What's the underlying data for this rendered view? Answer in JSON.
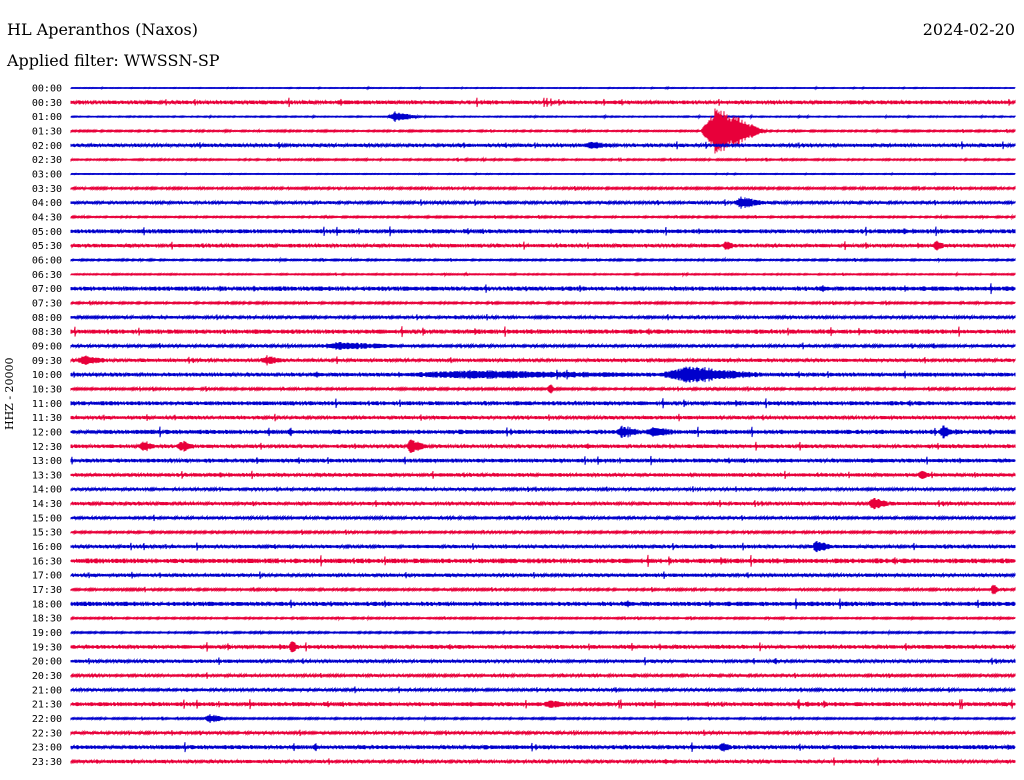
{
  "header": {
    "station": "HL Aperanthos (Naxos)",
    "date": "2024-02-20",
    "filter": "Applied filter: WWSSN-SP"
  },
  "chart_data": {
    "type": "line",
    "title": "HL Aperanthos (Naxos)",
    "subtitle": "Applied filter: WWSSN-SP",
    "ylabel": "HHZ - 20000",
    "xlabel": "",
    "colors": {
      "even_trace": "#0000cc",
      "odd_trace": "#e8003a"
    },
    "trace_labels": [
      "00:00",
      "00:30",
      "01:00",
      "01:30",
      "02:00",
      "02:30",
      "03:00",
      "03:30",
      "04:00",
      "04:30",
      "05:00",
      "05:30",
      "06:00",
      "06:30",
      "07:00",
      "07:30",
      "08:00",
      "08:30",
      "09:00",
      "09:30",
      "10:00",
      "10:30",
      "11:00",
      "11:30",
      "12:00",
      "12:30",
      "13:00",
      "13:30",
      "14:00",
      "14:30",
      "15:00",
      "15:30",
      "16:00",
      "16:30",
      "17:00",
      "17:30",
      "18:00",
      "18:30",
      "19:00",
      "19:30",
      "20:00",
      "20:30",
      "21:00",
      "21:30",
      "22:00",
      "22:30",
      "23:00",
      "23:30"
    ],
    "noise_level": [
      0.3,
      1.4,
      0.4,
      0.6,
      1.2,
      0.6,
      0.3,
      0.8,
      1.0,
      0.6,
      1.5,
      1.3,
      0.6,
      0.5,
      1.6,
      0.7,
      1.0,
      1.6,
      1.0,
      1.2,
      1.4,
      0.8,
      1.5,
      1.2,
      1.6,
      1.3,
      1.4,
      1.3,
      1.0,
      1.2,
      1.0,
      0.8,
      1.2,
      1.8,
      1.2,
      0.8,
      1.6,
      0.6,
      0.6,
      1.4,
      1.2,
      1.0,
      1.0,
      1.5,
      0.6,
      1.0,
      1.5,
      1.2
    ],
    "events": [
      {
        "trace": "01:00",
        "minute": 10.3,
        "amplitude": 5,
        "duration_min": 0.8
      },
      {
        "trace": "01:30",
        "minute": 20.5,
        "amplitude": 24,
        "duration_min": 1.6
      },
      {
        "trace": "02:00",
        "minute": 16.5,
        "amplitude": 3,
        "duration_min": 0.7
      },
      {
        "trace": "04:00",
        "minute": 21.3,
        "amplitude": 5,
        "duration_min": 0.8
      },
      {
        "trace": "05:30",
        "minute": 20.8,
        "amplitude": 4,
        "duration_min": 0.3
      },
      {
        "trace": "05:30",
        "minute": 27.5,
        "amplitude": 4,
        "duration_min": 0.3
      },
      {
        "trace": "09:00",
        "minute": 8.5,
        "amplitude": 3,
        "duration_min": 2.0
      },
      {
        "trace": "09:30",
        "minute": 0.4,
        "amplitude": 4,
        "duration_min": 0.8
      },
      {
        "trace": "09:30",
        "minute": 6.2,
        "amplitude": 4,
        "duration_min": 0.6
      },
      {
        "trace": "10:00",
        "minute": 19.5,
        "amplitude": 7,
        "duration_min": 2.5
      },
      {
        "trace": "10:00",
        "minute": 12.5,
        "amplitude": 3,
        "duration_min": 6.0
      },
      {
        "trace": "10:30",
        "minute": 15.2,
        "amplitude": 5,
        "duration_min": 0.2
      },
      {
        "trace": "12:00",
        "minute": 17.5,
        "amplitude": 5,
        "duration_min": 0.6
      },
      {
        "trace": "12:00",
        "minute": 18.5,
        "amplitude": 4,
        "duration_min": 0.7
      },
      {
        "trace": "12:00",
        "minute": 27.7,
        "amplitude": 6,
        "duration_min": 0.3
      },
      {
        "trace": "12:30",
        "minute": 2.3,
        "amplitude": 5,
        "duration_min": 0.4
      },
      {
        "trace": "12:30",
        "minute": 3.5,
        "amplitude": 5,
        "duration_min": 0.4
      },
      {
        "trace": "12:30",
        "minute": 10.8,
        "amplitude": 7,
        "duration_min": 0.5
      },
      {
        "trace": "13:30",
        "minute": 27.0,
        "amplitude": 4,
        "duration_min": 0.3
      },
      {
        "trace": "14:30",
        "minute": 25.5,
        "amplitude": 6,
        "duration_min": 0.5
      },
      {
        "trace": "16:00",
        "minute": 23.7,
        "amplitude": 5,
        "duration_min": 0.5
      },
      {
        "trace": "17:30",
        "minute": 29.3,
        "amplitude": 7,
        "duration_min": 0.2
      },
      {
        "trace": "19:30",
        "minute": 7.0,
        "amplitude": 6,
        "duration_min": 0.2
      },
      {
        "trace": "21:30",
        "minute": 15.2,
        "amplitude": 3,
        "duration_min": 0.5
      },
      {
        "trace": "22:00",
        "minute": 4.4,
        "amplitude": 4,
        "duration_min": 0.6
      },
      {
        "trace": "23:00",
        "minute": 20.7,
        "amplitude": 4,
        "duration_min": 0.3
      }
    ],
    "grid": false,
    "legend": "none"
  }
}
